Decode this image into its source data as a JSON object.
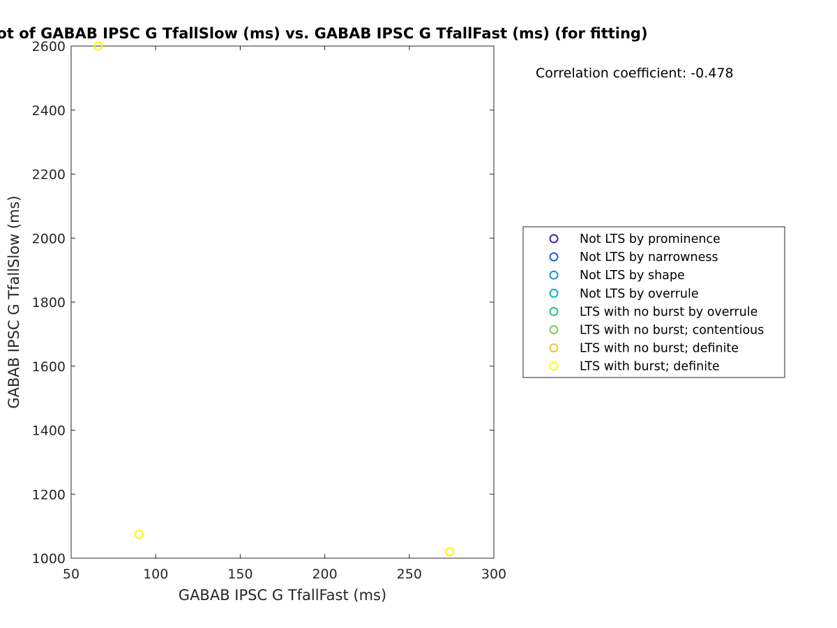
{
  "chart_data": {
    "type": "scatter",
    "title": "Scatter plot of GABAB IPSC G TfallSlow (ms) vs. GABAB IPSC G TfallFast (ms) (for fitting)",
    "xlabel": "GABAB IPSC G TfallFast (ms)",
    "ylabel": "GABAB IPSC G TfallSlow (ms)",
    "xlim": [
      50,
      300
    ],
    "ylim": [
      1000,
      2600
    ],
    "xticks": [
      "50",
      "100",
      "150",
      "200",
      "250",
      "300"
    ],
    "yticks": [
      "1000",
      "1200",
      "1400",
      "1600",
      "1800",
      "2000",
      "2200",
      "2400",
      "2600"
    ],
    "grid": false,
    "annotation": "Correlation coefficient: -0.478",
    "legend_position": "right",
    "legend": [
      {
        "label": "Not LTS by prominence",
        "color": "#3e26a8"
      },
      {
        "label": "Not LTS by narrowness",
        "color": "#1b5fe0"
      },
      {
        "label": "Not LTS by shape",
        "color": "#1e8fd4"
      },
      {
        "label": "Not LTS by overrule",
        "color": "#08b0c8"
      },
      {
        "label": "LTS with no burst by overrule",
        "color": "#2ebf93"
      },
      {
        "label": "LTS with no burst; contentious",
        "color": "#8cc45a"
      },
      {
        "label": "LTS with no burst; definite",
        "color": "#f7c130"
      },
      {
        "label": "LTS with burst; definite",
        "color": "#f9fb0e"
      }
    ],
    "points": [
      {
        "x": 66,
        "y": 2600,
        "category": "LTS with burst; definite"
      },
      {
        "x": 90,
        "y": 1075,
        "category": "LTS with burst; definite"
      },
      {
        "x": 274,
        "y": 1020,
        "category": "LTS with burst; definite"
      }
    ]
  }
}
